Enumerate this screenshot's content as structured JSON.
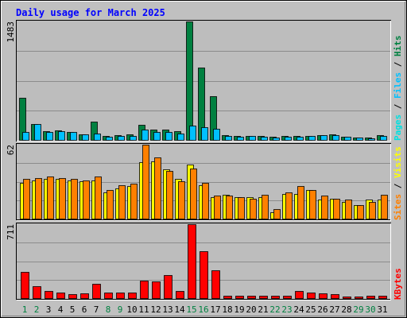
{
  "chart_data": {
    "type": "bar",
    "title": "Daily usage for March 2025",
    "days": [
      "1",
      "2",
      "3",
      "4",
      "5",
      "6",
      "7",
      "8",
      "9",
      "10",
      "11",
      "12",
      "13",
      "14",
      "15",
      "16",
      "17",
      "18",
      "19",
      "20",
      "21",
      "22",
      "23",
      "24",
      "25",
      "26",
      "27",
      "28",
      "29",
      "30",
      "31"
    ],
    "weekend_days": [
      "1",
      "2",
      "8",
      "9",
      "15",
      "16",
      "22",
      "23",
      "29",
      "30"
    ],
    "top_panel": {
      "ymax_label": "1483",
      "ymax": 1483,
      "right_labels": [
        "Pages",
        "/",
        "Files",
        "/",
        "Hits"
      ],
      "series": [
        {
          "name": "Hits",
          "color": "#008040",
          "values": [
            530,
            200,
            110,
            120,
            95,
            70,
            230,
            45,
            55,
            65,
            190,
            130,
            130,
            110,
            1483,
            910,
            550,
            55,
            50,
            50,
            45,
            40,
            45,
            45,
            50,
            55,
            70,
            40,
            30,
            25,
            60
          ]
        },
        {
          "name": "Files",
          "color": "#00c0ff",
          "values": [
            95,
            200,
            95,
            110,
            95,
            65,
            75,
            40,
            50,
            50,
            130,
            100,
            95,
            75,
            180,
            155,
            140,
            45,
            40,
            45,
            35,
            30,
            40,
            40,
            45,
            55,
            60,
            35,
            25,
            20,
            45
          ]
        },
        {
          "name": "Pages",
          "color": "#00e0e0",
          "values": [
            0,
            0,
            0,
            0,
            0,
            0,
            0,
            0,
            0,
            0,
            0,
            0,
            0,
            0,
            0,
            0,
            0,
            0,
            0,
            0,
            0,
            0,
            0,
            0,
            0,
            0,
            0,
            0,
            0,
            0,
            0
          ]
        }
      ]
    },
    "middle_panel": {
      "ymax_label": "62",
      "ymax": 62,
      "right_labels": [
        "Sites",
        "/",
        "Visits"
      ],
      "series": [
        {
          "name": "Visits",
          "color": "#ffff00",
          "values": [
            30,
            32,
            33,
            33,
            32,
            31,
            32,
            22,
            25,
            27,
            47,
            48,
            41,
            33,
            45,
            28,
            18,
            20,
            18,
            18,
            18,
            5,
            21,
            21,
            24,
            16,
            17,
            14,
            11,
            16,
            16
          ]
        },
        {
          "name": "Sites",
          "color": "#ff8000",
          "values": [
            33,
            34,
            35,
            34,
            33,
            32,
            35,
            24,
            28,
            29,
            62,
            51,
            40,
            31,
            42,
            30,
            19,
            19,
            18,
            17,
            20,
            8,
            22,
            27,
            24,
            19,
            17,
            16,
            11,
            14,
            20
          ]
        }
      ]
    },
    "bottom_panel": {
      "ymax_label": "711",
      "ymax": 711,
      "right_labels": [
        "KBytes"
      ],
      "series": [
        {
          "name": "KBytes",
          "color": "#ff0000",
          "values": [
            255,
            115,
            70,
            55,
            40,
            45,
            135,
            55,
            55,
            55,
            165,
            160,
            220,
            65,
            711,
            450,
            270,
            20,
            20,
            20,
            20,
            20,
            25,
            70,
            55,
            45,
            35,
            15,
            15,
            20,
            20
          ]
        }
      ]
    },
    "colors": {
      "background": "#c0c0c0",
      "panel": "#bdbdbd",
      "title": "#0000ff",
      "weekday_label": "#000000",
      "weekend_label": "#008040",
      "hits": "#008040",
      "files": "#00c0ff",
      "pages": "#00e0e0",
      "visits": "#ffff00",
      "sites": "#ff8000",
      "kbytes": "#ff0000"
    }
  }
}
